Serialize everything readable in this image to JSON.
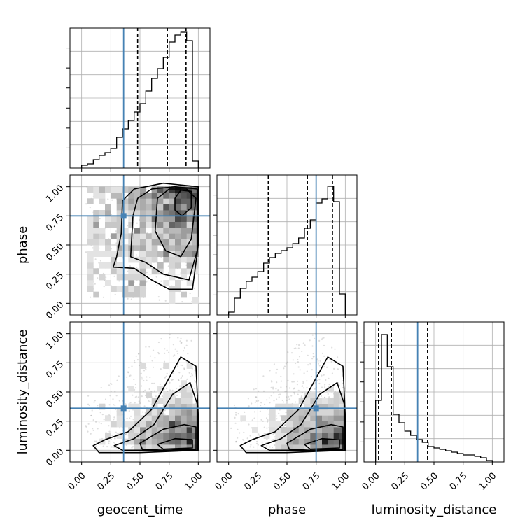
{
  "chart_data": {
    "type": "corner",
    "parameters": [
      "geocent_time",
      "phase",
      "luminosity_distance"
    ],
    "axis_range": [
      -0.1,
      1.1
    ],
    "ticks": [
      0.0,
      0.25,
      0.5,
      0.75,
      1.0
    ],
    "tick_labels": [
      "0.00",
      "0.25",
      "0.50",
      "0.75",
      "1.00"
    ],
    "grid": true,
    "colors": {
      "truth": "#4682b4",
      "hist": "#000000",
      "points": "#888888"
    },
    "truths": {
      "geocent_time": 0.36,
      "phase": 0.75,
      "luminosity_distance": 0.36
    },
    "quantiles": {
      "geocent_time": [
        0.48,
        0.735,
        0.895
      ],
      "phase": [
        0.34,
        0.675,
        0.89
      ],
      "luminosity_distance": [
        0.025,
        0.135,
        0.445
      ]
    },
    "histograms": {
      "geocent_time": {
        "edges": [
          0,
          0.05,
          0.1,
          0.15,
          0.2,
          0.25,
          0.3,
          0.35,
          0.4,
          0.45,
          0.5,
          0.55,
          0.6,
          0.65,
          0.7,
          0.75,
          0.8,
          0.85,
          0.9,
          0.95,
          1.0
        ],
        "counts": [
          0.02,
          0.03,
          0.06,
          0.09,
          0.11,
          0.14,
          0.22,
          0.28,
          0.34,
          0.4,
          0.46,
          0.55,
          0.64,
          0.71,
          0.79,
          0.9,
          0.95,
          0.97,
          0.91,
          0.05
        ]
      },
      "phase": {
        "edges": [
          0,
          0.05,
          0.1,
          0.15,
          0.2,
          0.25,
          0.3,
          0.35,
          0.4,
          0.45,
          0.5,
          0.55,
          0.6,
          0.65,
          0.7,
          0.75,
          0.8,
          0.85,
          0.9,
          0.95,
          1.0
        ],
        "counts": [
          0.02,
          0.12,
          0.19,
          0.24,
          0.27,
          0.31,
          0.37,
          0.41,
          0.44,
          0.46,
          0.48,
          0.51,
          0.55,
          0.62,
          0.68,
          0.8,
          0.83,
          0.92,
          0.81,
          0.15
        ]
      },
      "luminosity_distance": {
        "edges": [
          0,
          0.05,
          0.1,
          0.15,
          0.2,
          0.25,
          0.3,
          0.35,
          0.4,
          0.45,
          0.5,
          0.55,
          0.6,
          0.65,
          0.7,
          0.75,
          0.8,
          0.85,
          0.9,
          0.95,
          1.0
        ],
        "counts": [
          0.44,
          0.91,
          0.68,
          0.34,
          0.28,
          0.22,
          0.19,
          0.16,
          0.14,
          0.11,
          0.1,
          0.09,
          0.08,
          0.07,
          0.06,
          0.05,
          0.05,
          0.04,
          0.03,
          0.01
        ]
      }
    },
    "density_peaks": {
      "phase_vs_geocent_time": [
        0.88,
        0.93
      ],
      "luminosity_distance_vs_geocent_time": [
        0.85,
        0.05
      ],
      "luminosity_distance_vs_phase": [
        0.85,
        0.05
      ]
    }
  }
}
